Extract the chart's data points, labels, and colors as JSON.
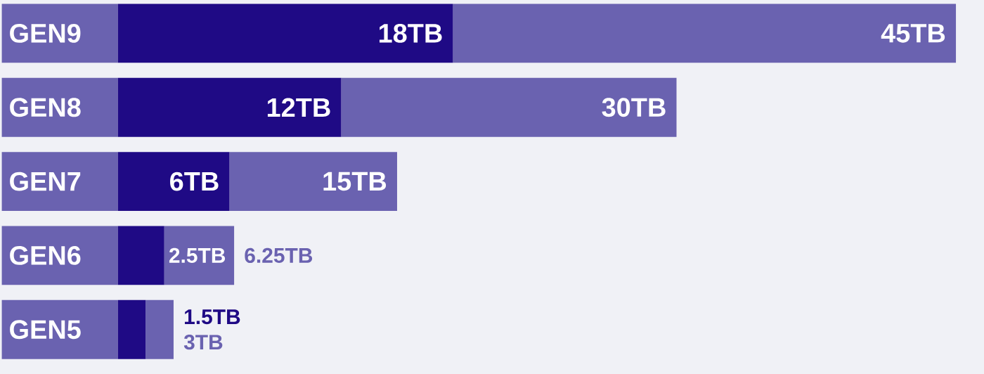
{
  "chart_data": {
    "type": "bar",
    "orientation": "horizontal",
    "stacked": true,
    "tick_labels": "y",
    "categories": [
      "GEN9",
      "GEN8",
      "GEN7",
      "GEN6",
      "GEN5"
    ],
    "series": [
      {
        "color": "#1f0a85",
        "values": [
          18,
          12,
          6,
          2.5,
          1.5
        ],
        "value_labels": [
          "18TB",
          "12TB",
          "6TB",
          "2.5TB",
          "1.5TB"
        ]
      },
      {
        "color": "#6a62b0",
        "values": [
          27,
          18,
          9,
          3.75,
          1.5
        ]
      }
    ],
    "totals": [
      "45TB",
      "30TB",
      "15TB",
      "6.25TB",
      "3TB"
    ]
  }
}
